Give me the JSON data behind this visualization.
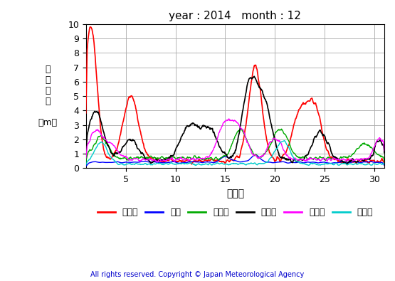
{
  "title": "year : 2014   month : 12",
  "xlabel": "（日）",
  "ylabel": "有\n義\n波\n高\n\n（m）",
  "xlim": [
    1,
    31
  ],
  "ylim": [
    0,
    10
  ],
  "yticks": [
    0,
    1,
    2,
    3,
    4,
    5,
    6,
    7,
    8,
    9,
    10
  ],
  "xticks": [
    5,
    10,
    15,
    20,
    25,
    30
  ],
  "grid_color": "#aaaaaa",
  "background_color": "#ffffff",
  "copyright": "All rights reserved. Copyright © Japan Meteorological Agency",
  "series": {
    "上ノ国": {
      "color": "#ff0000",
      "lw": 1.2
    },
    "唐桑": {
      "color": "#0000ff",
      "lw": 1.0
    },
    "石廊崎": {
      "color": "#00aa00",
      "lw": 1.0
    },
    "経ヶ岬": {
      "color": "#000000",
      "lw": 1.2
    },
    "生月島": {
      "color": "#ff00ff",
      "lw": 1.0
    },
    "屋久島": {
      "color": "#00cccc",
      "lw": 1.0
    }
  }
}
